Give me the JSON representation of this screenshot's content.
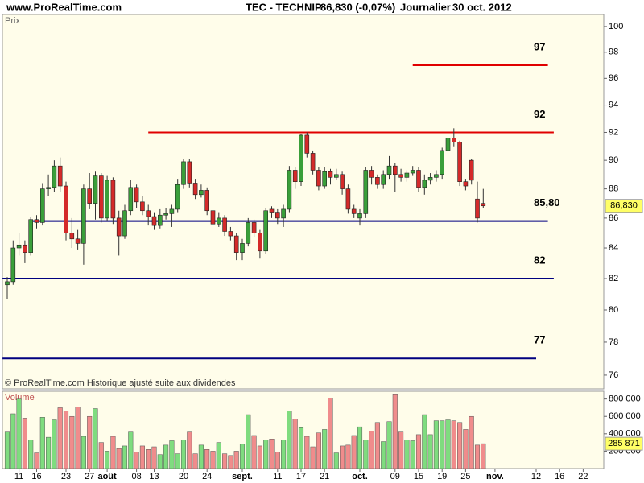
{
  "header": {
    "site": "www.ProRealTime.com",
    "title": "TEC - TECHNIP",
    "change": "86,830 (-0,07%)",
    "period": "Journalier",
    "date": "30 oct. 2012"
  },
  "chart_data": [
    {
      "type": "candlestick",
      "label": "Prix",
      "note": "© ProRealTime.com Historique ajusté suite aux dividendes",
      "categories": [
        null,
        null,
        "11",
        null,
        null,
        "16",
        null,
        null,
        null,
        null,
        "23",
        null,
        null,
        null,
        "27",
        null,
        null,
        "août",
        null,
        null,
        null,
        null,
        "08",
        null,
        null,
        "13",
        null,
        null,
        null,
        null,
        "20",
        null,
        null,
        null,
        "24",
        null,
        null,
        null,
        null,
        null,
        "sept.",
        null,
        null,
        null,
        null,
        null,
        "11",
        null,
        null,
        null,
        "17",
        null,
        null,
        null,
        "21",
        null,
        null,
        null,
        null,
        null,
        "oct.",
        null,
        null,
        null,
        null,
        null,
        "09",
        null,
        null,
        null,
        "15",
        null,
        null,
        null,
        "19",
        null,
        null,
        null,
        "25",
        null,
        null,
        null,
        null,
        "nov.",
        null,
        null,
        null,
        null,
        null,
        null,
        "12",
        null,
        null,
        null,
        "16",
        null,
        null,
        null,
        "22",
        null
      ],
      "open": [
        81.6,
        81.8,
        84.0,
        84.2,
        83.7,
        85.9,
        85.7,
        88.0,
        88.1,
        89.6,
        88.2,
        85.0,
        84.6,
        84.3,
        88.0,
        87.0,
        88.9,
        86.0,
        88.6,
        86.0,
        84.8,
        86.5,
        88.1,
        87.1,
        86.5,
        86.1,
        85.5,
        86.2,
        86.3,
        86.6,
        88.3,
        89.9,
        88.4,
        87.6,
        87.9,
        86.5,
        85.6,
        86.0,
        85.1,
        84.8,
        83.7,
        84.3,
        85.7,
        85.0,
        83.8,
        86.6,
        86.4,
        86.0,
        86.6,
        89.3,
        88.5,
        91.8,
        90.5,
        89.3,
        88.2,
        89.2,
        88.8,
        89.0,
        88.0,
        86.6,
        86.0,
        86.3,
        89.3,
        88.8,
        88.3,
        89.0,
        89.6,
        89.0,
        88.8,
        89.1,
        89.3,
        88.1,
        88.6,
        88.8,
        89.0,
        90.7,
        91.6,
        91.3,
        88.5,
        90.0,
        87.3,
        87.0,
        null,
        null,
        null,
        null,
        null,
        null,
        null,
        null,
        null,
        null,
        null,
        null,
        null,
        null,
        null,
        null,
        null,
        null
      ],
      "high": [
        82.1,
        84.5,
        85.0,
        84.5,
        86.1,
        86.2,
        88.4,
        89.0,
        90.0,
        90.2,
        88.5,
        86.0,
        85.2,
        88.3,
        89.1,
        89.2,
        89.1,
        88.9,
        88.8,
        86.5,
        86.9,
        88.6,
        88.3,
        87.5,
        86.9,
        86.4,
        86.6,
        86.7,
        86.9,
        88.7,
        90.1,
        90.1,
        88.7,
        88.3,
        88.1,
        86.7,
        86.4,
        86.2,
        85.4,
        85.0,
        84.6,
        86.0,
        85.9,
        85.2,
        86.7,
        86.8,
        86.6,
        86.9,
        89.6,
        89.5,
        91.9,
        92.0,
        90.7,
        89.5,
        89.5,
        89.4,
        89.4,
        89.2,
        88.3,
        86.9,
        86.6,
        89.5,
        89.6,
        89.0,
        89.3,
        90.3,
        89.8,
        89.4,
        89.3,
        89.6,
        89.5,
        89.0,
        89.1,
        89.3,
        90.9,
        91.9,
        92.3,
        91.4,
        88.7,
        90.1,
        88.5,
        88.0,
        null,
        null,
        null,
        null,
        null,
        null,
        null,
        null,
        null,
        null,
        null,
        null,
        null,
        null,
        null,
        null,
        null,
        null
      ],
      "low": [
        80.7,
        81.6,
        83.5,
        83.0,
        83.5,
        85.3,
        85.5,
        87.5,
        87.8,
        87.8,
        84.5,
        84.0,
        83.9,
        82.9,
        86.6,
        85.9,
        85.7,
        85.8,
        85.6,
        83.5,
        84.6,
        86.2,
        86.7,
        86.2,
        85.5,
        85.2,
        85.3,
        85.9,
        85.4,
        86.4,
        88.0,
        88.1,
        87.3,
        87.4,
        86.2,
        85.3,
        85.4,
        84.8,
        84.5,
        83.2,
        83.2,
        84.1,
        84.7,
        83.3,
        83.6,
        86.0,
        85.6,
        85.4,
        86.4,
        88.0,
        88.2,
        90.2,
        89.0,
        87.9,
        88.0,
        88.3,
        88.6,
        87.6,
        86.3,
        86.0,
        85.5,
        86.0,
        88.3,
        88.0,
        88.0,
        88.7,
        87.8,
        88.5,
        88.5,
        88.9,
        87.8,
        87.6,
        88.3,
        88.5,
        88.7,
        90.4,
        91.0,
        88.2,
        87.9,
        88.3,
        85.7,
        86.7,
        null,
        null,
        null,
        null,
        null,
        null,
        null,
        null,
        null,
        null,
        null,
        null,
        null,
        null,
        null,
        null,
        null,
        null
      ],
      "close": [
        81.8,
        84.0,
        84.2,
        83.7,
        85.9,
        85.7,
        88.0,
        88.1,
        89.6,
        88.2,
        85.0,
        84.6,
        84.3,
        88.0,
        87.0,
        88.9,
        86.0,
        88.6,
        86.0,
        84.8,
        86.5,
        88.1,
        87.1,
        86.5,
        86.1,
        85.5,
        86.2,
        86.3,
        86.6,
        88.3,
        89.9,
        88.4,
        87.6,
        87.9,
        86.5,
        85.6,
        86.0,
        85.1,
        84.8,
        83.7,
        84.3,
        85.7,
        85.0,
        83.8,
        86.5,
        86.4,
        86.0,
        86.6,
        89.3,
        88.5,
        91.8,
        90.5,
        89.3,
        88.2,
        89.2,
        88.8,
        89.0,
        88.0,
        86.6,
        86.3,
        86.3,
        89.3,
        88.8,
        88.3,
        89.0,
        89.6,
        89.0,
        88.8,
        89.1,
        89.3,
        88.1,
        88.6,
        88.8,
        89.0,
        90.7,
        91.6,
        91.3,
        88.5,
        88.2,
        88.6,
        86.0,
        86.83,
        null,
        null,
        null,
        null,
        null,
        null,
        null,
        null,
        null,
        null,
        null,
        null,
        null,
        null,
        null,
        null,
        null,
        null
      ],
      "up_color": "#3a9f3a",
      "down_color": "#d42a2a",
      "log": true,
      "ylim": [
        75.23,
        100.95
      ],
      "yticks": [
        76,
        78,
        80,
        82,
        84,
        86,
        88,
        90,
        92,
        94,
        96,
        98,
        100
      ],
      "grid": false,
      "levels": [
        {
          "value": 97,
          "color": "#e00000"
        },
        {
          "value": 92,
          "color": "#e00000"
        },
        {
          "value": 85.8,
          "label": "85,80",
          "color": "#000080"
        },
        {
          "value": 82,
          "color": "#000080"
        },
        {
          "value": 77,
          "color": "#000080"
        }
      ],
      "last_price": {
        "value": 86.83,
        "label": "86,830"
      }
    },
    {
      "type": "bar",
      "label": "Volume",
      "values": [
        420000,
        630000,
        800000,
        580000,
        330000,
        180000,
        590000,
        360000,
        560000,
        700000,
        660000,
        600000,
        710000,
        370000,
        600000,
        690000,
        300000,
        200000,
        370000,
        230000,
        260000,
        420000,
        190000,
        260000,
        220000,
        250000,
        160000,
        270000,
        320000,
        170000,
        330000,
        420000,
        170000,
        270000,
        220000,
        200000,
        300000,
        170000,
        150000,
        200000,
        280000,
        620000,
        380000,
        260000,
        330000,
        340000,
        190000,
        330000,
        660000,
        570000,
        470000,
        370000,
        250000,
        410000,
        450000,
        810000,
        180000,
        260000,
        270000,
        380000,
        480000,
        330000,
        430000,
        530000,
        310000,
        540000,
        850000,
        420000,
        330000,
        320000,
        390000,
        620000,
        390000,
        550000,
        550000,
        560000,
        550000,
        530000,
        450000,
        600000,
        270000,
        285871,
        null,
        null,
        null,
        null,
        null,
        null,
        null,
        null,
        null,
        null,
        null,
        null,
        null,
        null,
        null,
        null,
        null,
        null
      ],
      "up_color": "#7fdc7f",
      "down_color": "#f08c8c",
      "ylim": [
        0,
        880000
      ],
      "yticks": [
        {
          "value": 200000,
          "label": "200 000"
        },
        {
          "value": 400000,
          "label": "400 000"
        },
        {
          "value": 600000,
          "label": "600 000"
        },
        {
          "value": 800000,
          "label": "800 000"
        }
      ],
      "last_value": {
        "value": 285871,
        "label": "285 871"
      }
    }
  ]
}
